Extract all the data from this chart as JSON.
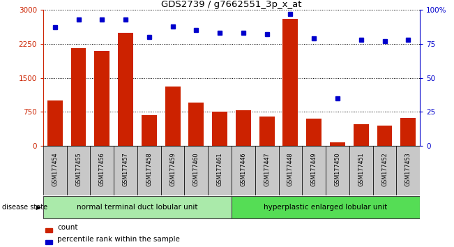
{
  "title": "GDS2739 / g7662551_3p_x_at",
  "samples": [
    "GSM177454",
    "GSM177455",
    "GSM177456",
    "GSM177457",
    "GSM177458",
    "GSM177459",
    "GSM177460",
    "GSM177461",
    "GSM177446",
    "GSM177447",
    "GSM177448",
    "GSM177449",
    "GSM177450",
    "GSM177451",
    "GSM177452",
    "GSM177453"
  ],
  "counts": [
    1000,
    2150,
    2100,
    2500,
    680,
    1300,
    950,
    750,
    780,
    650,
    2800,
    600,
    80,
    480,
    440,
    620
  ],
  "percentiles": [
    87,
    93,
    93,
    93,
    80,
    88,
    85,
    83,
    83,
    82,
    97,
    79,
    35,
    78,
    77,
    78
  ],
  "group1_label": "normal terminal duct lobular unit",
  "group2_label": "hyperplastic enlarged lobular unit",
  "group1_count": 8,
  "group2_count": 8,
  "bar_color": "#CC2200",
  "dot_color": "#0000CC",
  "left_ylim": [
    0,
    3000
  ],
  "right_ylim": [
    0,
    100
  ],
  "left_yticks": [
    0,
    750,
    1500,
    2250,
    3000
  ],
  "right_yticks": [
    0,
    25,
    50,
    75,
    100
  ],
  "right_yticklabels": [
    "0",
    "25",
    "50",
    "75",
    "100%"
  ],
  "group1_color": "#AAEAAA",
  "group2_color": "#55DD55",
  "legend_bar_label": "count",
  "legend_dot_label": "percentile rank within the sample",
  "disease_state_label": "disease state",
  "bg_color": "#FFFFFF"
}
